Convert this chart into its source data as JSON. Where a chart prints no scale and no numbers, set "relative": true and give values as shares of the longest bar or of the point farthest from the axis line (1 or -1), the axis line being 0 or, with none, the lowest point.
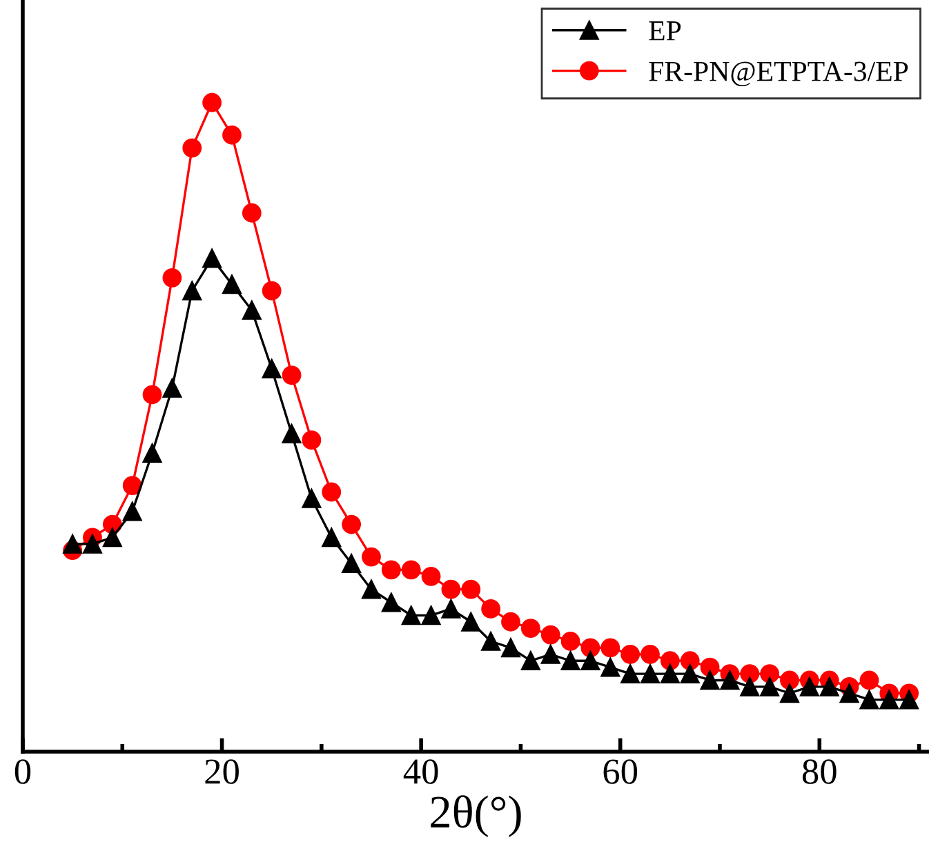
{
  "chart_data": {
    "type": "line",
    "xlabel": "2θ(°)",
    "relative": true,
    "x": [
      5,
      7,
      9,
      11,
      13,
      15,
      17,
      19,
      21,
      23,
      25,
      27,
      29,
      31,
      33,
      35,
      37,
      39,
      41,
      43,
      45,
      47,
      49,
      51,
      53,
      55,
      57,
      59,
      61,
      63,
      65,
      67,
      69,
      71,
      73,
      75,
      77,
      79,
      81,
      83,
      85,
      87,
      89
    ],
    "xlim": [
      0,
      91
    ],
    "xticks": [
      0,
      {
        "value": 10,
        "label": null
      },
      20,
      {
        "value": 30,
        "label": null
      },
      40,
      {
        "value": 50,
        "label": null
      },
      60,
      {
        "value": 70,
        "label": null
      },
      80,
      {
        "value": 90,
        "label": null
      }
    ],
    "series": [
      {
        "name": "EP",
        "color": "#000000",
        "marker": "triangle",
        "values": [
          0.32,
          0.32,
          0.33,
          0.37,
          0.46,
          0.56,
          0.71,
          0.76,
          0.72,
          0.68,
          0.59,
          0.49,
          0.39,
          0.33,
          0.29,
          0.25,
          0.23,
          0.21,
          0.21,
          0.22,
          0.2,
          0.17,
          0.16,
          0.14,
          0.15,
          0.14,
          0.14,
          0.13,
          0.12,
          0.12,
          0.12,
          0.12,
          0.11,
          0.11,
          0.1,
          0.1,
          0.09,
          0.1,
          0.1,
          0.09,
          0.08,
          0.08,
          0.08
        ]
      },
      {
        "name": "FR-PN@ETPTA-3/EP",
        "color": "#ff0000",
        "marker": "circle",
        "values": [
          0.31,
          0.33,
          0.35,
          0.41,
          0.55,
          0.73,
          0.93,
          1,
          0.95,
          0.83,
          0.71,
          0.58,
          0.48,
          0.4,
          0.35,
          0.3,
          0.28,
          0.28,
          0.27,
          0.25,
          0.25,
          0.22,
          0.2,
          0.19,
          0.18,
          0.17,
          0.16,
          0.16,
          0.15,
          0.15,
          0.14,
          0.14,
          0.13,
          0.12,
          0.12,
          0.12,
          0.11,
          0.11,
          0.11,
          0.1,
          0.11,
          0.09,
          0.09
        ]
      }
    ],
    "legend": "top right",
    "grid": false
  }
}
